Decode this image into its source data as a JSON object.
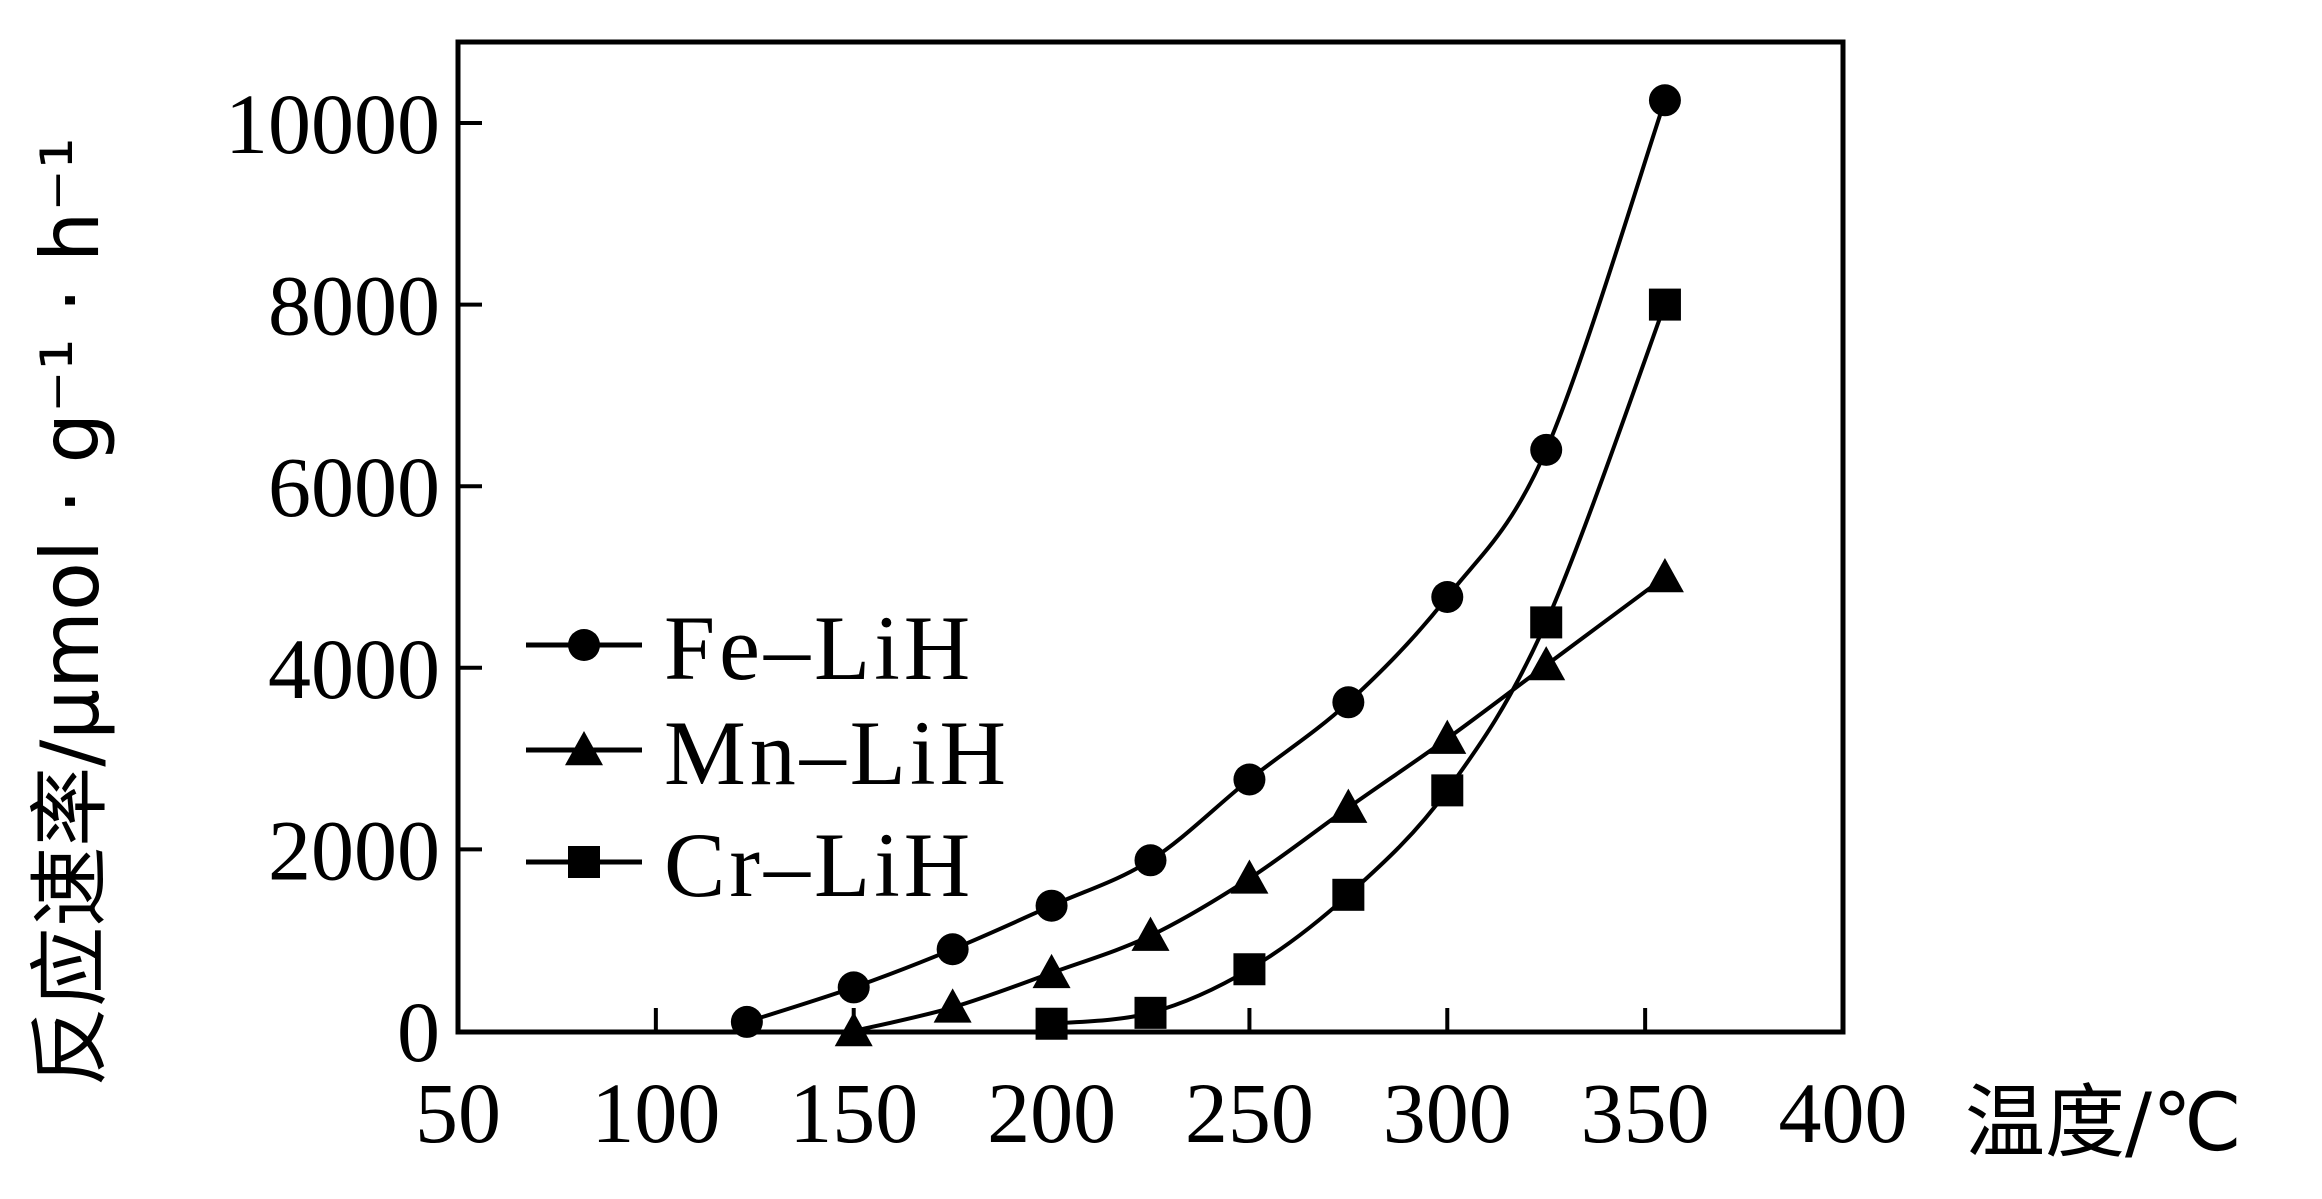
{
  "chart_data": {
    "type": "line",
    "xlabel": "温度/℃",
    "ylabel": "反应速率/μmol · g⁻¹ · h⁻¹",
    "xlim": [
      50,
      400
    ],
    "ylim": [
      0,
      11000
    ],
    "x_ticks": [
      50,
      100,
      150,
      200,
      250,
      300,
      350,
      400
    ],
    "y_ticks": [
      0,
      2000,
      4000,
      6000,
      8000,
      10000
    ],
    "legend_position": "left-middle",
    "grid": false,
    "series": [
      {
        "name": "Fe–LiH",
        "marker": "circle",
        "x": [
          123,
          150,
          175,
          200,
          225,
          250,
          275,
          300,
          325,
          355
        ],
        "y": [
          100,
          480,
          900,
          1380,
          1880,
          2770,
          3620,
          4780,
          6400,
          10250
        ]
      },
      {
        "name": "Mn–LiH",
        "marker": "triangle",
        "x": [
          150,
          175,
          200,
          225,
          250,
          275,
          300,
          325,
          355
        ],
        "y": [
          0,
          260,
          640,
          1050,
          1680,
          2460,
          3220,
          4030,
          5000
        ]
      },
      {
        "name": "Cr–LiH",
        "marker": "square",
        "x": [
          200,
          225,
          250,
          275,
          300,
          325,
          355
        ],
        "y": [
          80,
          200,
          680,
          1500,
          2650,
          4500,
          8000
        ]
      }
    ]
  }
}
